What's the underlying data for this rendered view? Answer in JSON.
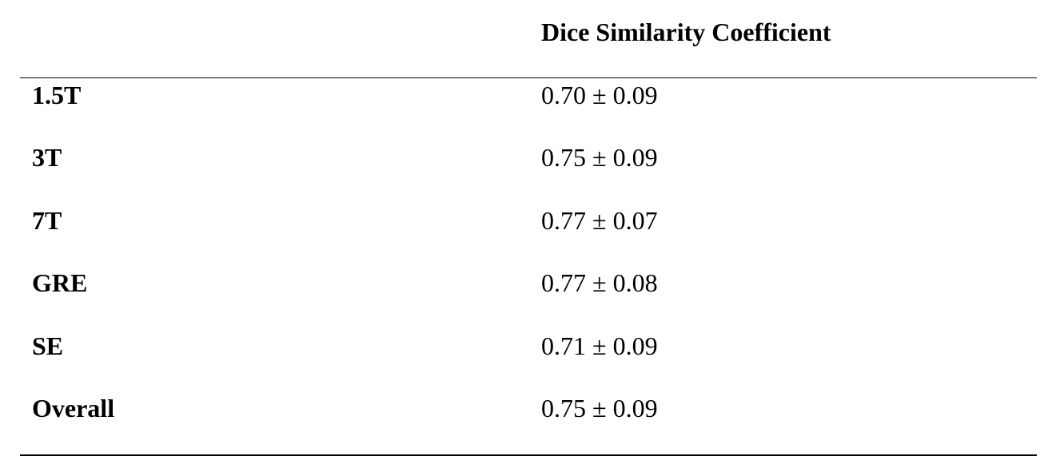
{
  "table": {
    "header": "Dice Similarity Coefficient",
    "rows": [
      [
        "1.5T",
        "0.70 ± 0.09"
      ],
      [
        "3T",
        "0.75 ± 0.09"
      ],
      [
        "7T",
        "0.77 ± 0.07"
      ],
      [
        "GRE",
        "0.77 ± 0.08"
      ],
      [
        "SE",
        "0.71 ± 0.09"
      ],
      [
        "Overall",
        "0.75 ± 0.09"
      ]
    ]
  }
}
